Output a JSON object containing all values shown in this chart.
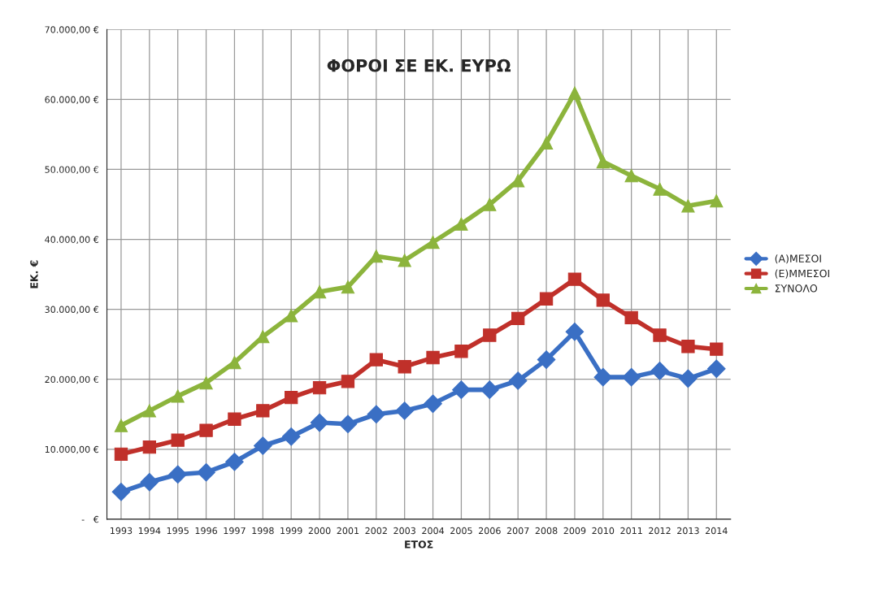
{
  "chart_data": {
    "type": "line",
    "title": "ΦΟΡΟΙ ΣΕ ΕΚ. ΕΥΡΩ",
    "xlabel": "ΕΤΟΣ",
    "ylabel": "ΕΚ. €",
    "categories": [
      "1993",
      "1994",
      "1995",
      "1996",
      "1997",
      "1998",
      "1999",
      "2000",
      "2001",
      "2002",
      "2003",
      "2004",
      "2005",
      "2006",
      "2007",
      "2008",
      "2009",
      "2010",
      "2011",
      "2012",
      "2013",
      "2014"
    ],
    "series": [
      {
        "name": "(Α)ΜΕΣΟΙ",
        "color": "#3a6fc4",
        "marker": "diamond",
        "values": [
          3900,
          5300,
          6400,
          6700,
          8200,
          10500,
          11800,
          13800,
          13600,
          15000,
          15500,
          16500,
          18500,
          18500,
          19800,
          22800,
          26800,
          20300,
          20300,
          21200,
          20100,
          21500
        ]
      },
      {
        "name": "(Ε)ΜΜΕΣΟΙ",
        "color": "#c0302a",
        "marker": "square",
        "values": [
          9300,
          10300,
          11300,
          12700,
          14300,
          15500,
          17400,
          18800,
          19700,
          22800,
          21800,
          23100,
          24000,
          26300,
          28700,
          31500,
          34300,
          31300,
          28800,
          26300,
          24700,
          24300
        ]
      },
      {
        "name": "ΣΥΝΟΛΟ",
        "color": "#8cb43c",
        "marker": "triangle",
        "values": [
          13400,
          15500,
          17600,
          19500,
          22400,
          26100,
          29100,
          32500,
          33200,
          37600,
          37000,
          39600,
          42200,
          45000,
          48400,
          53800,
          60900,
          51100,
          49100,
          47200,
          44800,
          45500
        ]
      }
    ],
    "ylim": [
      0,
      70000
    ],
    "yticks": [
      {
        "value": 0,
        "label": "-   €"
      },
      {
        "value": 10000,
        "label": "10.000,00 €"
      },
      {
        "value": 20000,
        "label": "20.000,00 €"
      },
      {
        "value": 30000,
        "label": "30.000,00 €"
      },
      {
        "value": 40000,
        "label": "40.000,00 €"
      },
      {
        "value": 50000,
        "label": "50.000,00 €"
      },
      {
        "value": 60000,
        "label": "60.000,00 €"
      },
      {
        "value": 70000,
        "label": "70.000,00 €"
      }
    ],
    "grid": true,
    "legend": "right",
    "line_style": "solid"
  }
}
